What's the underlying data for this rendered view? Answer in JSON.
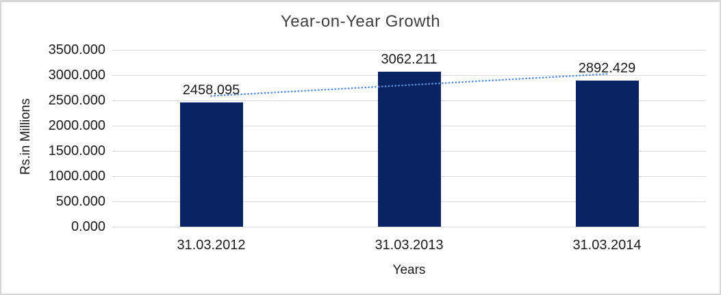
{
  "chart_data": {
    "type": "bar",
    "title": "Year-on-Year Growth",
    "categories": [
      "31.03.2012",
      "31.03.2013",
      "31.03.2014"
    ],
    "values": [
      2458.095,
      3062.211,
      2892.429
    ],
    "value_labels": [
      "2458.095",
      "3062.211",
      "2892.429"
    ],
    "xlabel": "Years",
    "ylabel": "Rs.in Millions",
    "ylim": [
      0,
      3500
    ],
    "ytick_step": 500,
    "ytick_labels": [
      "0.000",
      "500.000",
      "1000.000",
      "1500.000",
      "2000.000",
      "2500.000",
      "3000.000",
      "3500.000"
    ],
    "grid": true,
    "legend": "none",
    "trendline": {
      "type": "linear",
      "style": "dotted"
    },
    "colors": {
      "bar": "#0a2463",
      "trendline": "#5b8fd6",
      "gridline": "#d9d9d9",
      "axis_text": "#1a1a1a",
      "title_text": "#3f3f3f",
      "frame_border": "#d7d7d7",
      "background": "#ffffff"
    }
  }
}
